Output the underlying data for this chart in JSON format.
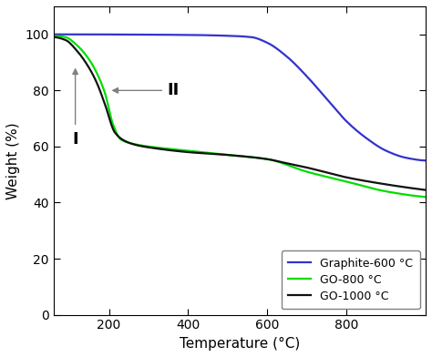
{
  "xlabel": "Temperature (°C)",
  "ylabel": "Weight (%)",
  "xlim": [
    60,
    1000
  ],
  "ylim": [
    0,
    110
  ],
  "yticks": [
    0,
    20,
    40,
    60,
    80,
    100
  ],
  "xticks": [
    200,
    400,
    600,
    800
  ],
  "colors": {
    "graphite": "#3333cc",
    "go800": "#00dd00",
    "go1000": "#111111"
  },
  "legend_labels": [
    "Graphite-600 °C",
    "GO-800 °C",
    "GO-1000 °C"
  ],
  "graphite_knots_x": [
    60,
    400,
    500,
    560,
    600,
    650,
    700,
    750,
    800,
    850,
    900,
    950,
    1000
  ],
  "graphite_knots_y": [
    100,
    99.8,
    99.5,
    99.0,
    97.0,
    92.0,
    85.0,
    77.0,
    69.0,
    63.0,
    58.5,
    56.0,
    55.0
  ],
  "go800_knots_x": [
    60,
    90,
    120,
    150,
    170,
    190,
    210,
    230,
    260,
    300,
    400,
    500,
    600,
    700,
    800,
    900,
    1000
  ],
  "go800_knots_y": [
    99.5,
    99.0,
    96.0,
    91.0,
    86.0,
    79.0,
    68.0,
    62.5,
    61.0,
    60.0,
    58.5,
    57.0,
    55.5,
    51.0,
    47.5,
    44.0,
    42.0
  ],
  "go1000_knots_x": [
    60,
    90,
    120,
    150,
    170,
    190,
    215,
    240,
    270,
    310,
    400,
    500,
    600,
    650,
    700,
    800,
    900,
    1000
  ],
  "go1000_knots_y": [
    99.0,
    98.0,
    94.0,
    88.0,
    82.5,
    75.0,
    65.0,
    62.0,
    60.5,
    59.5,
    58.0,
    57.0,
    55.5,
    54.0,
    52.5,
    49.0,
    46.5,
    44.5
  ]
}
